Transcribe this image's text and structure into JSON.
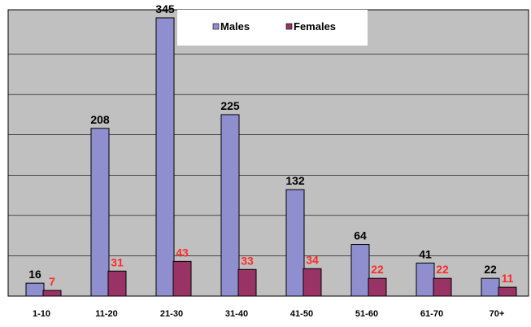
{
  "chart_data": {
    "type": "bar",
    "categories": [
      "1-10",
      "11-20",
      "21-30",
      "31-40",
      "41-50",
      "51-60",
      "61-70",
      "70+"
    ],
    "series": [
      {
        "name": "Males",
        "values": [
          16,
          208,
          345,
          225,
          132,
          64,
          41,
          22
        ],
        "color": "#8f8fcf",
        "label_color": "#000000"
      },
      {
        "name": "Females",
        "values": [
          7,
          31,
          43,
          33,
          34,
          22,
          22,
          11
        ],
        "color": "#993366",
        "label_color": "#ff2a2a"
      }
    ],
    "ylim": [
      0,
      350
    ],
    "y_gridline_step": 50,
    "y_tick_labels_shown": false,
    "grid": true,
    "legend_position": "top-center",
    "plot_background": "#c0c0c0",
    "title": "",
    "xlabel": "",
    "ylabel": ""
  }
}
